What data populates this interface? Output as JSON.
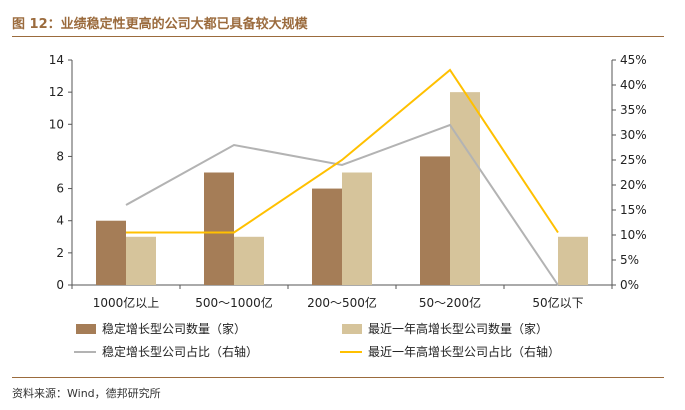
{
  "figure": {
    "title": "图 12：业绩稳定性更高的公司大都已具备较大规模",
    "source": "资料来源：Wind，德邦研究所"
  },
  "colors": {
    "stable_count": "#a57d57",
    "recent_count": "#d6c49b",
    "stable_ratio": "#b3b3b3",
    "recent_ratio": "#ffc000",
    "accent": "#9b6b3d"
  },
  "chart_data": {
    "type": "bar",
    "categories": [
      "1000亿以上",
      "500～1000亿",
      "200～500亿",
      "50～200亿",
      "50亿以下"
    ],
    "series": [
      {
        "name": "稳定增长型公司数量（家）",
        "kind": "bar",
        "axis": "left",
        "values": [
          4,
          7,
          6,
          8,
          0
        ]
      },
      {
        "name": "最近一年高增长型公司数量（家）",
        "kind": "bar",
        "axis": "left",
        "values": [
          3,
          3,
          7,
          12,
          3
        ]
      },
      {
        "name": "稳定增长型公司占比（右轴）",
        "kind": "line",
        "axis": "right",
        "values": [
          16,
          28,
          24,
          32,
          0
        ]
      },
      {
        "name": "最近一年高增长型公司占比（右轴）",
        "kind": "line",
        "axis": "right",
        "values": [
          10.5,
          10.5,
          25,
          43,
          10.5
        ]
      }
    ],
    "ylim_left": [
      0,
      14
    ],
    "yticks_left": [
      "0",
      "2",
      "4",
      "6",
      "8",
      "10",
      "12",
      "14"
    ],
    "ylim_right": [
      0,
      45
    ],
    "yticks_right": [
      "0%",
      "5%",
      "10%",
      "15%",
      "20%",
      "25%",
      "30%",
      "35%",
      "40%",
      "45%"
    ],
    "grid": false,
    "legend_position": "bottom"
  }
}
